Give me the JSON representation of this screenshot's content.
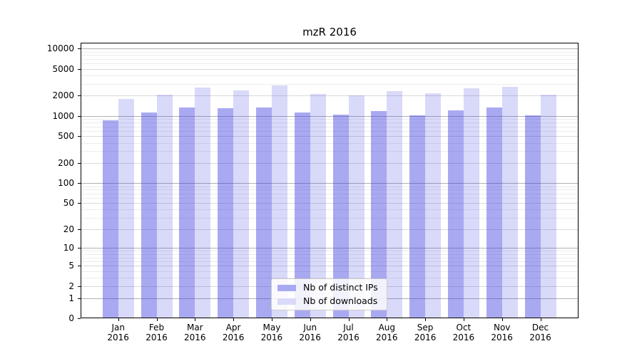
{
  "title": "mzR 2016",
  "colors": {
    "bar_distinct_ips": "rgba(64,64,224,0.45)",
    "bar_downloads": "rgba(64,64,224,0.20)",
    "bar_distinct_ips_solid": "#a9a9f1",
    "bar_downloads_solid": "#d9d9f9",
    "grid_decade": "#b0b0b0",
    "grid_labeled": "#d9d9d9",
    "grid_minor": "#ececec",
    "axis": "#000000",
    "legend_border": "#cccccc",
    "legend_background": "rgba(255,255,255,0.85)",
    "text": "#000000",
    "background": "#ffffff"
  },
  "legend": {
    "items": [
      {
        "label": "Nb of distinct IPs"
      },
      {
        "label": "Nb of downloads"
      }
    ]
  },
  "chart_data": {
    "type": "bar",
    "title": "mzR 2016",
    "categories": [
      "Jan 2016",
      "Feb 2016",
      "Mar 2016",
      "Apr 2016",
      "May 2016",
      "Jun 2016",
      "Jul 2016",
      "Aug 2016",
      "Sep 2016",
      "Oct 2016",
      "Nov 2016",
      "Dec 2016"
    ],
    "x_tick_line1": [
      "Jan",
      "Feb",
      "Mar",
      "Apr",
      "May",
      "Jun",
      "Jul",
      "Aug",
      "Sep",
      "Oct",
      "Nov",
      "Dec"
    ],
    "x_tick_line2": "2016",
    "series": [
      {
        "name": "Nb of distinct IPs",
        "values": [
          860,
          1130,
          1340,
          1310,
          1340,
          1120,
          1040,
          1190,
          1020,
          1210,
          1340,
          1020
        ]
      },
      {
        "name": "Nb of downloads",
        "values": [
          1800,
          2070,
          2650,
          2400,
          2840,
          2110,
          2010,
          2330,
          2180,
          2590,
          2730,
          2080
        ]
      }
    ],
    "xlabel": "",
    "ylabel": "",
    "yscale": "log1p",
    "y_ticks": [
      0,
      1,
      2,
      5,
      10,
      20,
      50,
      100,
      200,
      500,
      1000,
      2000,
      5000,
      10000
    ],
    "y_minor_mantissas": [
      3,
      4,
      6,
      7,
      8,
      9
    ],
    "ylim": [
      0,
      12200
    ],
    "grid": "horizontal",
    "legend_position": "inside-lower-center"
  }
}
